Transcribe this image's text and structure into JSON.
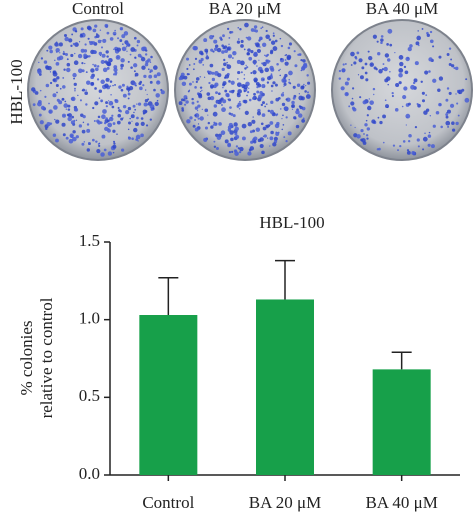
{
  "panel": {
    "row_label": "HBL-100",
    "columns": [
      "Control",
      "BA 20 μM",
      "BA 40 μM"
    ]
  },
  "chart_data": {
    "type": "bar",
    "title": "HBL-100",
    "ylabel": [
      "% colonies",
      "relative to control"
    ],
    "categories": [
      "Control",
      "BA 20 μM",
      "BA 40 μM"
    ],
    "values": [
      1.03,
      1.13,
      0.68
    ],
    "errors": [
      0.24,
      0.25,
      0.11
    ],
    "color": "#17a04a",
    "ylim": [
      0,
      1.5
    ],
    "yticks": [
      {
        "value": 0,
        "label": "0.0"
      },
      {
        "value": 0.5,
        "label": "0.5"
      },
      {
        "value": 1,
        "label": "1.0"
      },
      {
        "value": 1.5,
        "label": "1.5"
      }
    ]
  }
}
